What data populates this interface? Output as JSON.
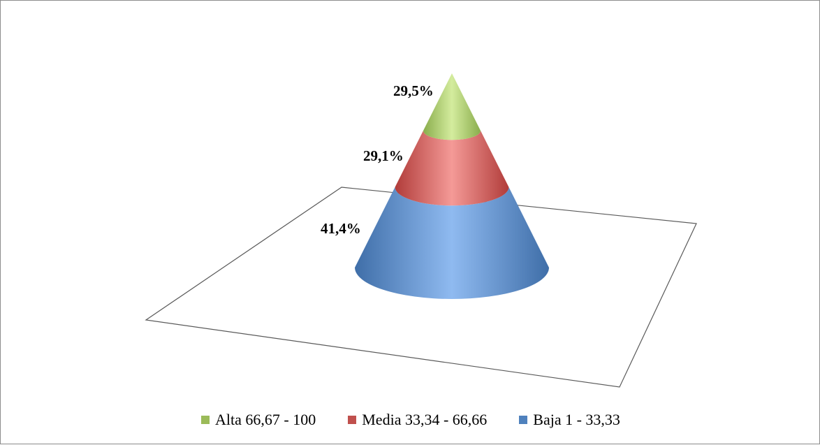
{
  "chart_data": {
    "type": "pyramid",
    "shape": "cone",
    "stack_order": "bottom-to-top",
    "series": [
      {
        "name": "Baja 1 - 33,33",
        "value": 41.4,
        "label": "41,4%",
        "color": "#4f81bd"
      },
      {
        "name": "Media 33,34 - 66,66",
        "value": 29.1,
        "label": "29,1%",
        "color": "#c0504d"
      },
      {
        "name": "Alta 66,67 - 100",
        "value": 29.5,
        "label": "29,5%",
        "color": "#9bbb59"
      }
    ],
    "legend": {
      "position": "bottom",
      "order": [
        "Alta 66,67 - 100",
        "Media 33,34 - 66,66",
        "Baja 1 - 33,33"
      ]
    },
    "floor": true,
    "grid": false
  }
}
